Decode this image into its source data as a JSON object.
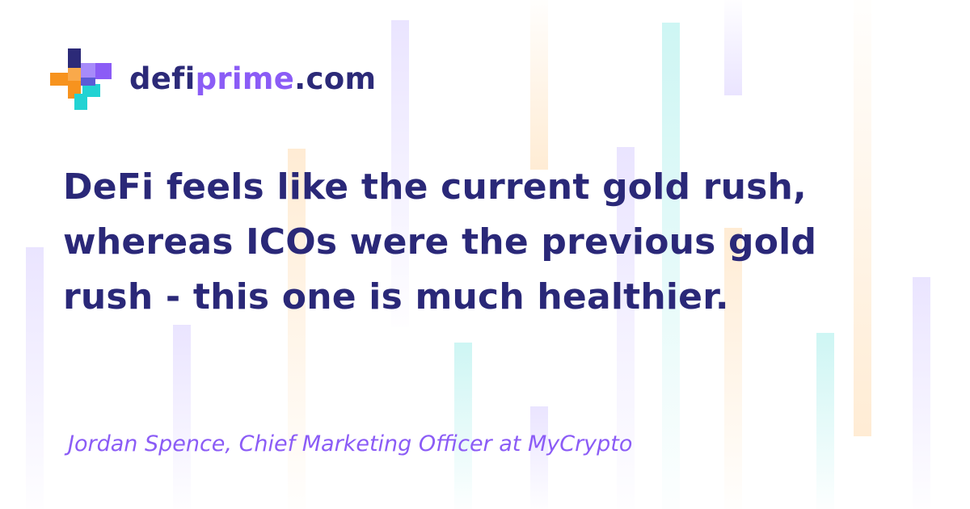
{
  "brand": {
    "part1": "defi",
    "part2": "prime",
    "part3": ".com",
    "icon": "defiprime-cross-logo-icon",
    "colors": {
      "navy": "#2c2a78",
      "purple": "#8b5cf6",
      "orange": "#f7931e",
      "cyan": "#22d3d3"
    }
  },
  "quote": {
    "line1": "DeFi feels like the current gold rush,",
    "line2": "whereas ICOs were the previous gold",
    "line3": "rush - this one is much healthier."
  },
  "attribution": {
    "text": "Jordan Spence, Chief Marketing Officer at MyCrypto"
  }
}
